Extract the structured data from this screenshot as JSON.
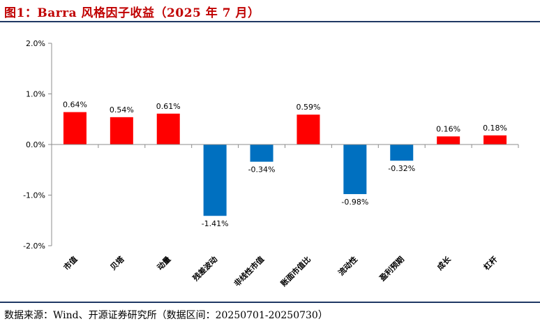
{
  "figure": {
    "title": "图1：Barra 风格因子收益（2025 年 7 月）",
    "source": "数据来源：Wind、开源证券研究所（数据区间：20250701-20250730）"
  },
  "colors": {
    "positive": "#ff0000",
    "negative": "#0070c0",
    "axis": "#8c8c8c",
    "label": "#000000",
    "rule": "#1f3864",
    "title": "#c00000"
  },
  "chart_data": {
    "type": "bar",
    "categories": [
      "市值",
      "贝塔",
      "动量",
      "残差波动",
      "非线性市值",
      "账面市值比",
      "流动性",
      "盈利预期",
      "成长",
      "杠杆"
    ],
    "values": [
      0.64,
      0.54,
      0.61,
      -1.41,
      -0.34,
      0.59,
      -0.98,
      -0.32,
      0.16,
      0.18
    ],
    "data_labels": [
      "0.64%",
      "0.54%",
      "0.61%",
      "-1.41%",
      "-0.34%",
      "0.59%",
      "-0.98%",
      "-0.32%",
      "0.16%",
      "0.18%"
    ],
    "ylim": [
      -2.0,
      2.0
    ],
    "yticks": [
      2.0,
      1.0,
      0.0,
      -1.0,
      -2.0
    ],
    "ytick_labels": [
      "2.0%",
      "1.0%",
      "0.0%",
      "-1.0%",
      "-2.0%"
    ],
    "title": "",
    "xlabel": "",
    "ylabel": "",
    "grid": false,
    "legend": "none"
  }
}
